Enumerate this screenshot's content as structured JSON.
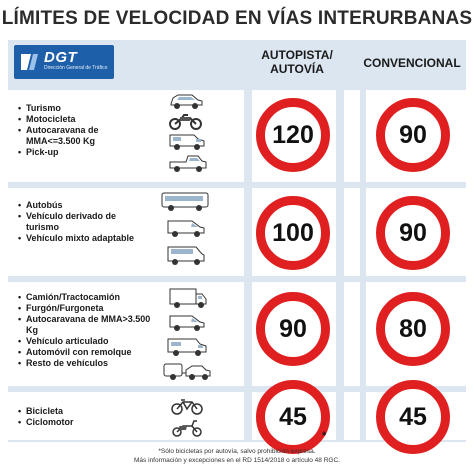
{
  "title": "LÍMITES DE VELOCIDAD  EN VÍAS INTERURBANAS",
  "logo": {
    "text": "DGT",
    "subtitle": "Dirección General de Tráfico"
  },
  "columns": {
    "autopista_line1": "AUTOPISTA/",
    "autopista_line2": "AUTOVÍA",
    "convencional": "CONVENCIONAL"
  },
  "rows": [
    {
      "vehicles": [
        "Turismo",
        "Motocicleta",
        "Autocaravana de MMA<=3.500 Kg",
        "Pick-up"
      ],
      "autopista": "120",
      "convencional": "90"
    },
    {
      "vehicles": [
        "Autobús",
        "Vehículo derivado de turismo",
        "Vehículo mixto adaptable"
      ],
      "autopista": "100",
      "convencional": "90"
    },
    {
      "vehicles": [
        "Camión/Tractocamión",
        "Furgón/Furgoneta",
        "Autocaravana de MMA>3.500 Kg",
        "Vehículo articulado",
        "Automóvil con remolque",
        "Resto de vehículos"
      ],
      "autopista": "90",
      "convencional": "80"
    },
    {
      "vehicles": [
        "Bicicleta",
        "Ciclomotor"
      ],
      "autopista": "45",
      "convencional": "45"
    }
  ],
  "asterisk": "*",
  "footnote": {
    "line1": "*Sólo bicicletas por autovía, salvo prohibición expresa.",
    "line2": "Más información y excepciones en el RD 1514/2018 o artículo 48 RGC."
  },
  "colors": {
    "accent": "#e02020",
    "band": "#dce6f1",
    "brand": "#1d5fa8"
  },
  "icons": [
    "car-icon",
    "motorcycle-icon",
    "motorhome-icon",
    "pickup-icon",
    "bus-icon",
    "van-icon",
    "minibus-icon",
    "truck-icon",
    "trailer-icon",
    "bicycle-icon",
    "moped-icon"
  ]
}
